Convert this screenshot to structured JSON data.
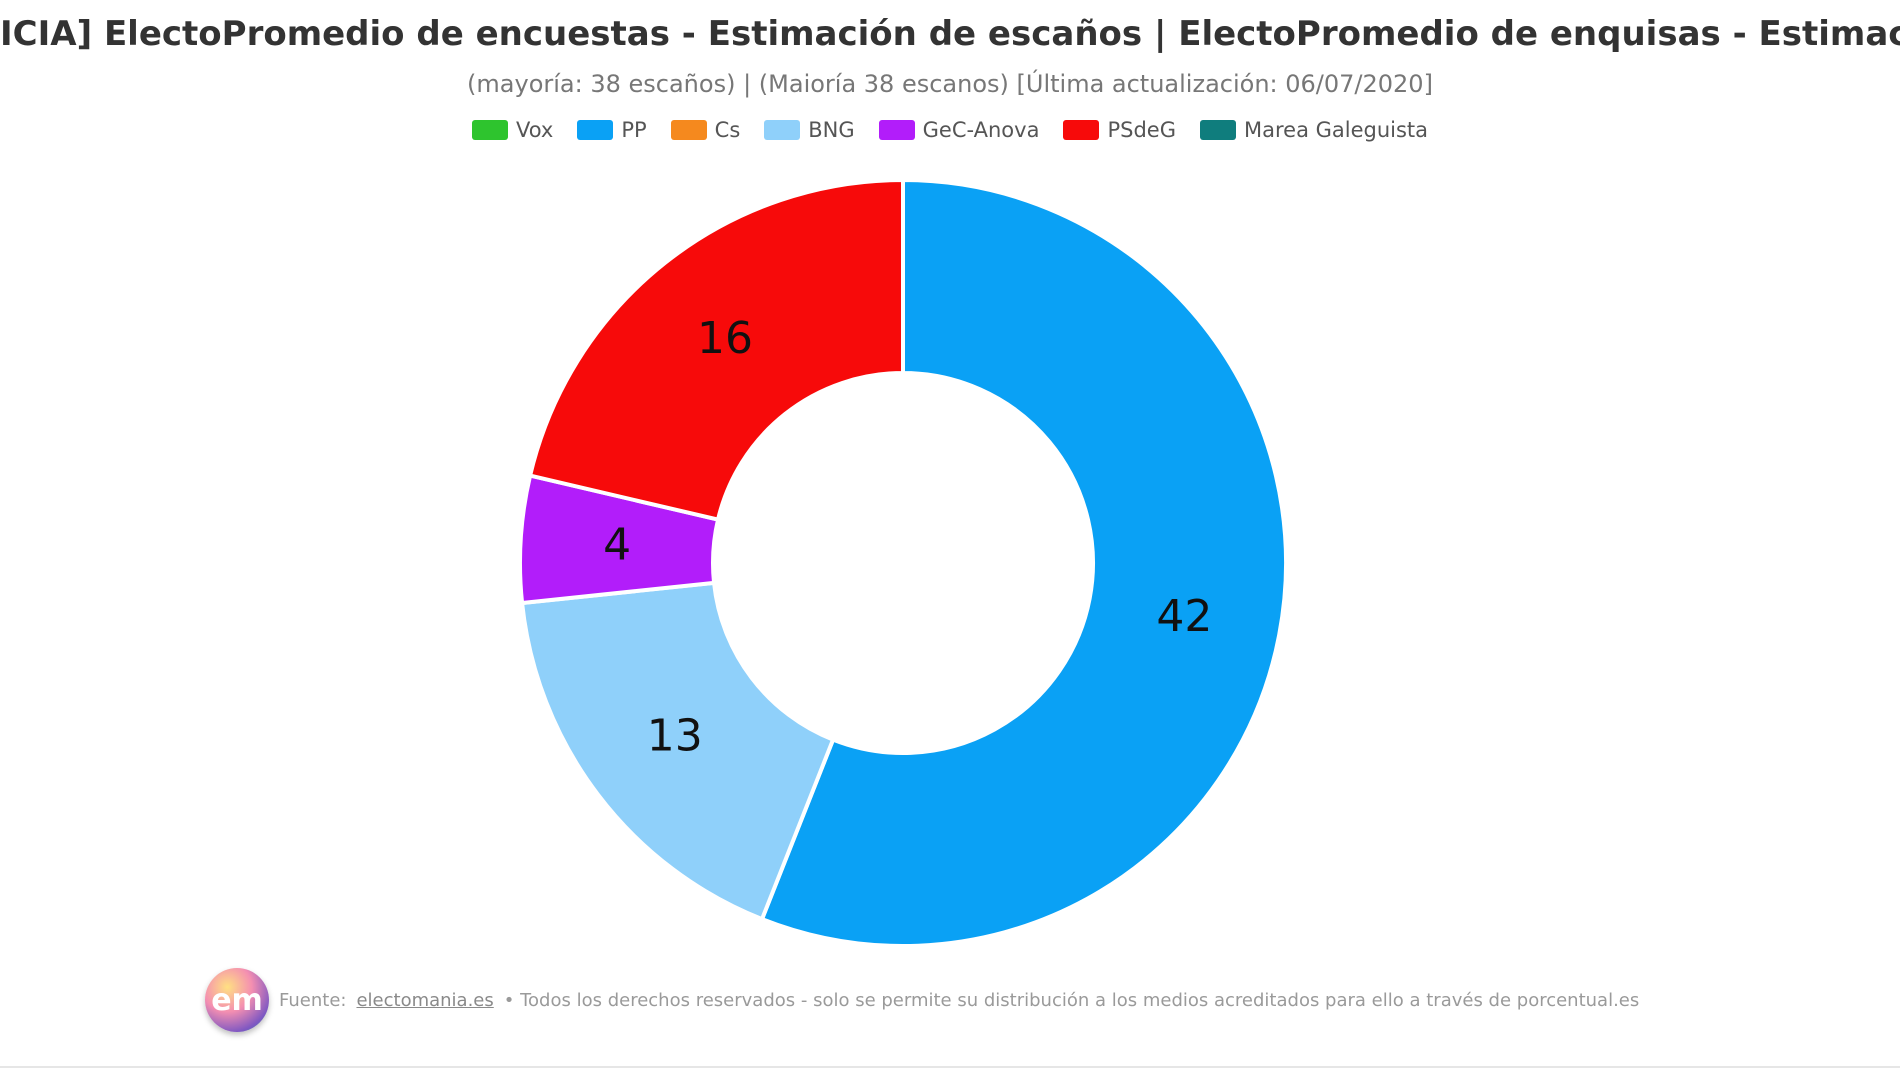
{
  "title": "ICIA] ElectoPromedio de encuestas - Estimación de escaños | ElectoPromedio de enquisas - Estimación de escanos",
  "subtitle": "(mayoría: 38 escaños) | (Maioría 38 escanos) [Última actualización: 06/07/2020]",
  "legend": [
    {
      "name": "Vox",
      "color": "#2ec42e"
    },
    {
      "name": "PP",
      "color": "#0aa1f5"
    },
    {
      "name": "Cs",
      "color": "#f5891e"
    },
    {
      "name": "BNG",
      "color": "#8fd0fa"
    },
    {
      "name": "GeC-Anova",
      "color": "#b21dfa"
    },
    {
      "name": "PSdeG",
      "color": "#f70a0a"
    },
    {
      "name": "Marea Galeguista",
      "color": "#0f7d7d"
    }
  ],
  "chart_data": {
    "type": "pie",
    "donut": true,
    "title": "ICIA] ElectoPromedio de encuestas - Estimación de escaños | ElectoPromedio de enquisas - Estimación de escanos",
    "subtitle": "(mayoría: 38 escaños) | (Maioría 38 escanos) [Última actualización: 06/07/2020]",
    "legend_position": "top",
    "categories": [
      "Vox",
      "PP",
      "Cs",
      "BNG",
      "GeC-Anova",
      "PSdeG",
      "Marea Galeguista"
    ],
    "values": [
      0,
      42,
      0,
      13,
      4,
      16,
      0
    ],
    "colors": [
      "#2ec42e",
      "#0aa1f5",
      "#f5891e",
      "#8fd0fa",
      "#b21dfa",
      "#f70a0a",
      "#0f7d7d"
    ]
  },
  "footer": {
    "logo_text": "em",
    "prefix": "Fuente:",
    "link_text": "electomania.es",
    "rest": "• Todos los derechos reservados - solo se permite su distribución a los medios acreditados para ello a través de porcentual.es"
  }
}
